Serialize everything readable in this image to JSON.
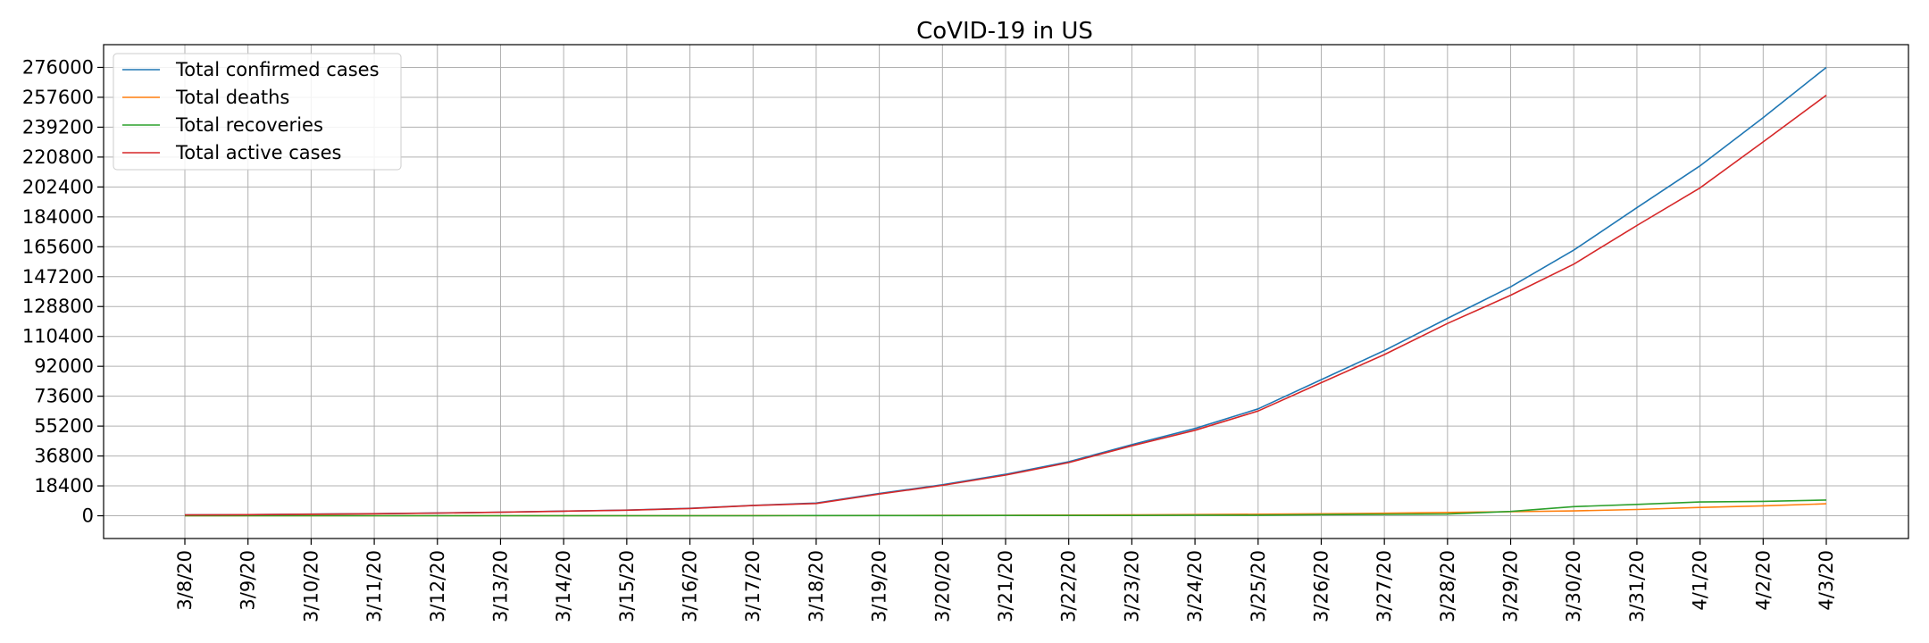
{
  "chart_data": {
    "type": "line",
    "title": "CoVID-19 in US",
    "xlabel": "",
    "ylabel": "",
    "categories": [
      "3/8/20",
      "3/9/20",
      "3/10/20",
      "3/11/20",
      "3/12/20",
      "3/13/20",
      "3/14/20",
      "3/15/20",
      "3/16/20",
      "3/17/20",
      "3/18/20",
      "3/19/20",
      "3/20/20",
      "3/21/20",
      "3/22/20",
      "3/23/20",
      "3/24/20",
      "3/25/20",
      "3/26/20",
      "3/27/20",
      "3/28/20",
      "3/29/20",
      "3/30/20",
      "3/31/20",
      "4/1/20",
      "4/2/20",
      "4/3/20"
    ],
    "yticks": [
      0,
      18400,
      36800,
      55200,
      73600,
      92000,
      110400,
      128800,
      147200,
      165600,
      184000,
      202400,
      220800,
      239200,
      257600,
      276000
    ],
    "yticklabels": [
      "0",
      "18400",
      "36800",
      "55200",
      "73600",
      "92000",
      "110400",
      "128800",
      "147200",
      "165600",
      "184000",
      "202400",
      "220800",
      "239200",
      "257600",
      "276000"
    ],
    "ylim": [
      -14000,
      290000
    ],
    "grid": true,
    "legend_position": "top-left",
    "series": [
      {
        "name": "Total confirmed cases",
        "color": "#1f77b4",
        "values": [
          540,
          700,
          1000,
          1300,
          1700,
          2200,
          2900,
          3500,
          4600,
          6400,
          7800,
          13700,
          19100,
          25500,
          33300,
          43800,
          53700,
          65800,
          83800,
          101700,
          121500,
          140900,
          163500,
          189600,
          215400,
          245100,
          276000
        ]
      },
      {
        "name": "Total deaths",
        "color": "#ff7f0e",
        "values": [
          22,
          26,
          31,
          38,
          41,
          50,
          57,
          64,
          85,
          108,
          150,
          206,
          255,
          301,
          414,
          553,
          706,
          941,
          1209,
          1581,
          2026,
          2467,
          2978,
          3873,
          5116,
          6095,
          7403
        ]
      },
      {
        "name": "Total recoveries",
        "color": "#2ca02c",
        "values": [
          8,
          8,
          8,
          8,
          10,
          12,
          12,
          12,
          17,
          17,
          106,
          108,
          147,
          176,
          178,
          178,
          348,
          361,
          681,
          869,
          1072,
          2665,
          5644,
          7024,
          8474,
          8878,
          9707
        ]
      },
      {
        "name": "Total active cases",
        "color": "#d62728",
        "values": [
          510,
          666,
          961,
          1254,
          1649,
          2138,
          2831,
          3424,
          4498,
          6275,
          7544,
          13386,
          18698,
          25023,
          32708,
          43069,
          52646,
          64498,
          81910,
          99250,
          118402,
          135768,
          154878,
          178703,
          201810,
          230127,
          258890
        ]
      }
    ]
  }
}
